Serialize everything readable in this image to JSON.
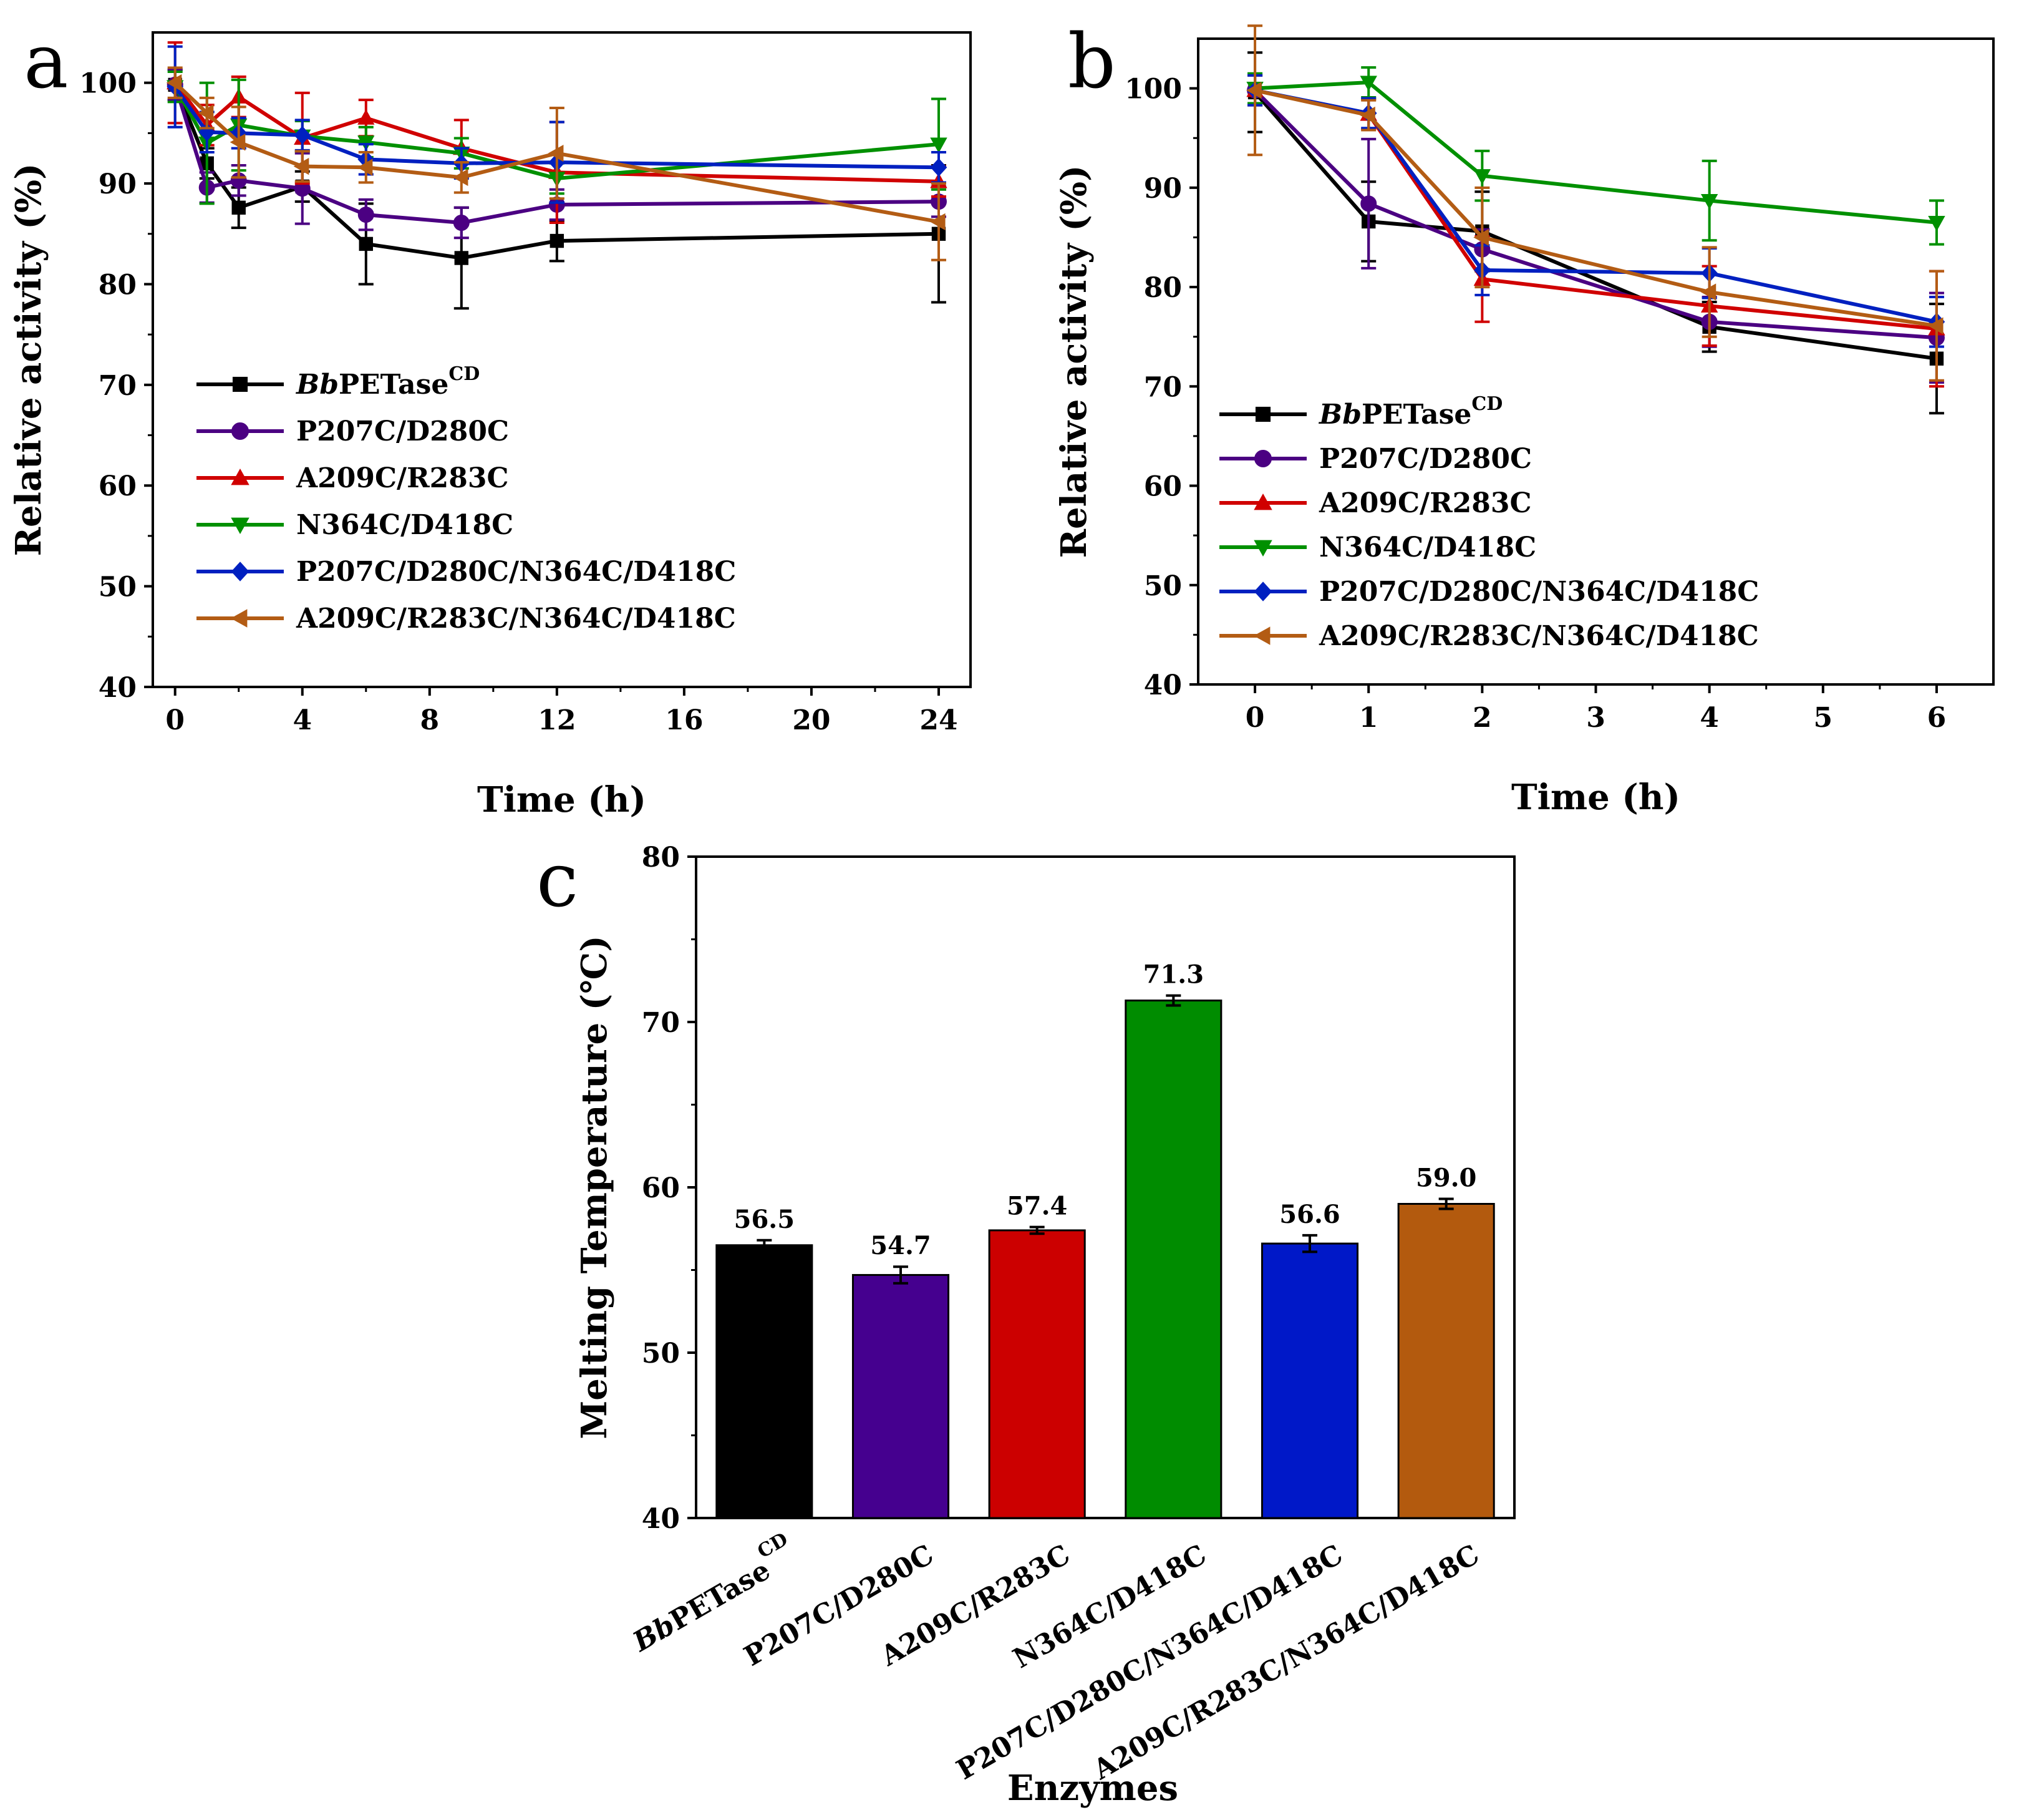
{
  "chart_data": [
    {
      "type": "line",
      "panel": "a",
      "xlabel": "Time (h)",
      "ylabel": "Relative activity (%)",
      "xlim": [
        -0.7,
        25
      ],
      "ylim": [
        40,
        105
      ],
      "xticks": [
        0,
        4,
        8,
        12,
        16,
        20,
        24
      ],
      "yticks": [
        40,
        50,
        60,
        70,
        80,
        90,
        100
      ],
      "legend_position": "bottom-left",
      "x": [
        0,
        1,
        2,
        4,
        6,
        9,
        12,
        24
      ],
      "series": [
        {
          "name": "BbPETase",
          "name_italic": "Bb",
          "name_rest": "PETase",
          "name_sup": "CD",
          "marker": "square",
          "color": "#000000",
          "values": [
            99.8,
            92.0,
            87.6,
            89.7,
            84.0,
            82.6,
            84.3,
            85.0
          ],
          "errors": [
            1.5,
            1.5,
            2.0,
            1.5,
            4.0,
            5.0,
            2.0,
            6.8
          ]
        },
        {
          "name": "P207C/D280C",
          "marker": "circle",
          "color": "#4B0082",
          "values": [
            99.8,
            89.6,
            90.3,
            89.5,
            86.9,
            86.1,
            87.9,
            88.2
          ],
          "errors": [
            1.5,
            1.5,
            1.5,
            3.5,
            1.5,
            1.5,
            1.5,
            1.5
          ]
        },
        {
          "name": "A209C/R283C",
          "marker": "triangle-up",
          "color": "#D00000",
          "values": [
            100.0,
            95.8,
            98.6,
            94.5,
            96.5,
            93.5,
            91.1,
            90.2
          ],
          "errors": [
            4.0,
            2.0,
            2.0,
            4.5,
            1.8,
            2.8,
            5.0,
            1.5
          ]
        },
        {
          "name": "N364C/D418C",
          "marker": "triangle-down",
          "color": "#009000",
          "values": [
            99.6,
            94.0,
            95.8,
            94.7,
            94.1,
            93.0,
            90.5,
            93.9
          ],
          "errors": [
            1.5,
            6.0,
            4.5,
            1.5,
            1.5,
            1.5,
            1.5,
            4.5
          ]
        },
        {
          "name": "P207C/D280C/N364C/D418C",
          "marker": "diamond",
          "color": "#0020C0",
          "values": [
            99.6,
            95.1,
            95.0,
            94.8,
            92.4,
            92.0,
            92.1,
            91.6
          ],
          "errors": [
            4.0,
            2.0,
            1.5,
            1.5,
            1.5,
            1.5,
            4.0,
            1.5
          ]
        },
        {
          "name": "A209C/R283C/N364C/D418C",
          "marker": "triangle-left",
          "color": "#B35C14",
          "values": [
            100.0,
            97.0,
            94.1,
            91.7,
            91.6,
            90.6,
            93.0,
            86.2
          ],
          "errors": [
            1.5,
            1.5,
            3.5,
            1.5,
            1.5,
            1.5,
            4.5,
            3.8
          ]
        }
      ]
    },
    {
      "type": "line",
      "panel": "b",
      "xlabel": "Time (h)",
      "ylabel": "Relative activity (%)",
      "xlim": [
        -0.5,
        6.5
      ],
      "ylim": [
        40,
        105
      ],
      "xticks": [
        0,
        1,
        2,
        3,
        4,
        5,
        6
      ],
      "yticks": [
        40,
        50,
        60,
        70,
        80,
        90,
        100
      ],
      "legend_position": "bottom-left",
      "x": [
        0,
        1,
        2,
        4,
        6
      ],
      "series": [
        {
          "name": "BbPETase",
          "name_italic": "Bb",
          "name_rest": "PETase",
          "name_sup": "CD",
          "marker": "square",
          "color": "#000000",
          "values": [
            99.6,
            86.6,
            85.6,
            76.0,
            72.8
          ],
          "errors": [
            4.0,
            4.0,
            4.0,
            2.5,
            5.5
          ]
        },
        {
          "name": "P207C/D280C",
          "marker": "circle",
          "color": "#4B0082",
          "values": [
            99.8,
            88.4,
            83.8,
            76.5,
            74.9
          ],
          "errors": [
            1.5,
            6.5,
            2.0,
            2.5,
            4.5
          ]
        },
        {
          "name": "A209C/R283C",
          "marker": "triangle-up",
          "color": "#D00000",
          "values": [
            99.8,
            97.4,
            80.8,
            78.1,
            75.8
          ],
          "errors": [
            1.5,
            1.5,
            4.3,
            4.0,
            5.8
          ]
        },
        {
          "name": "N364C/D418C",
          "marker": "triangle-down",
          "color": "#009000",
          "values": [
            100.0,
            100.6,
            91.2,
            88.7,
            86.5
          ],
          "errors": [
            1.5,
            1.5,
            2.5,
            4.0,
            2.2
          ]
        },
        {
          "name": "P207C/D280C/N364C/D418C",
          "marker": "diamond",
          "color": "#0020C0",
          "values": [
            99.8,
            97.5,
            81.7,
            81.4,
            76.5
          ],
          "errors": [
            1.5,
            1.5,
            2.5,
            2.5,
            2.5
          ]
        },
        {
          "name": "A209C/R283C/N364C/D418C",
          "marker": "triangle-left",
          "color": "#B35C14",
          "values": [
            99.8,
            97.3,
            85.0,
            79.5,
            76.1
          ],
          "errors": [
            6.5,
            1.5,
            5.0,
            4.5,
            5.5
          ]
        }
      ]
    },
    {
      "type": "bar",
      "panel": "c",
      "xlabel": "Enzymes",
      "ylabel": "Melting Temperature (℃)",
      "ylim": [
        40,
        80
      ],
      "yticks": [
        40,
        50,
        60,
        70,
        80
      ],
      "categories": [
        "BbPETaseCD",
        "P207C/D280C",
        "A209C/R283C",
        "N364C/D418C",
        "P207C/D280C/N364C/D418C",
        "A209C/R283C/N364C/D418C"
      ],
      "category_parts": [
        {
          "italic": "Bb",
          "rest": "PETase",
          "sup": "CD"
        },
        {
          "italic": "",
          "rest": "P207C/D280C",
          "sup": ""
        },
        {
          "italic": "",
          "rest": "A209C/R283C",
          "sup": ""
        },
        {
          "italic": "",
          "rest": "N364C/D418C",
          "sup": ""
        },
        {
          "italic": "",
          "rest": "P207C/D280C/N364C/D418C",
          "sup": ""
        },
        {
          "italic": "",
          "rest": "A209C/R283C/N364C/D418C",
          "sup": ""
        }
      ],
      "values": [
        56.5,
        54.7,
        57.4,
        71.3,
        56.6,
        59.0
      ],
      "value_labels": [
        "56.5",
        "54.7",
        "57.4",
        "71.3",
        "56.6",
        "59.0"
      ],
      "errors": [
        0.3,
        0.5,
        0.2,
        0.3,
        0.5,
        0.3
      ],
      "colors": [
        "#000000",
        "#45008F",
        "#CC0000",
        "#008C00",
        "#0018C8",
        "#B35A0E"
      ]
    }
  ],
  "panels": {
    "a": "a",
    "b": "b",
    "c": "c"
  }
}
